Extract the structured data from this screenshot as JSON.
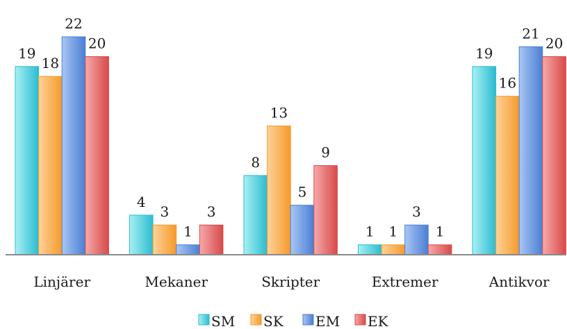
{
  "chart_data": {
    "type": "bar",
    "categories": [
      "Linjärer",
      "Mekaner",
      "Skripter",
      "Extremer",
      "Antikvor"
    ],
    "series": [
      {
        "name": "SM",
        "values": [
          19,
          4,
          8,
          1,
          19
        ],
        "color_light": "#a8f0f4",
        "color_dark": "#2bbcd0"
      },
      {
        "name": "SK",
        "values": [
          18,
          3,
          13,
          1,
          16
        ],
        "color_light": "#ffd29a",
        "color_dark": "#f59a2a"
      },
      {
        "name": "EM",
        "values": [
          22,
          1,
          5,
          3,
          21
        ],
        "color_light": "#a9c6f4",
        "color_dark": "#4a7fd4"
      },
      {
        "name": "EK",
        "values": [
          20,
          3,
          9,
          1,
          20
        ],
        "color_light": "#f6a9a9",
        "color_dark": "#d84a4a"
      }
    ],
    "ylim": [
      0,
      22
    ],
    "grid": false,
    "legend_position": "bottom"
  }
}
